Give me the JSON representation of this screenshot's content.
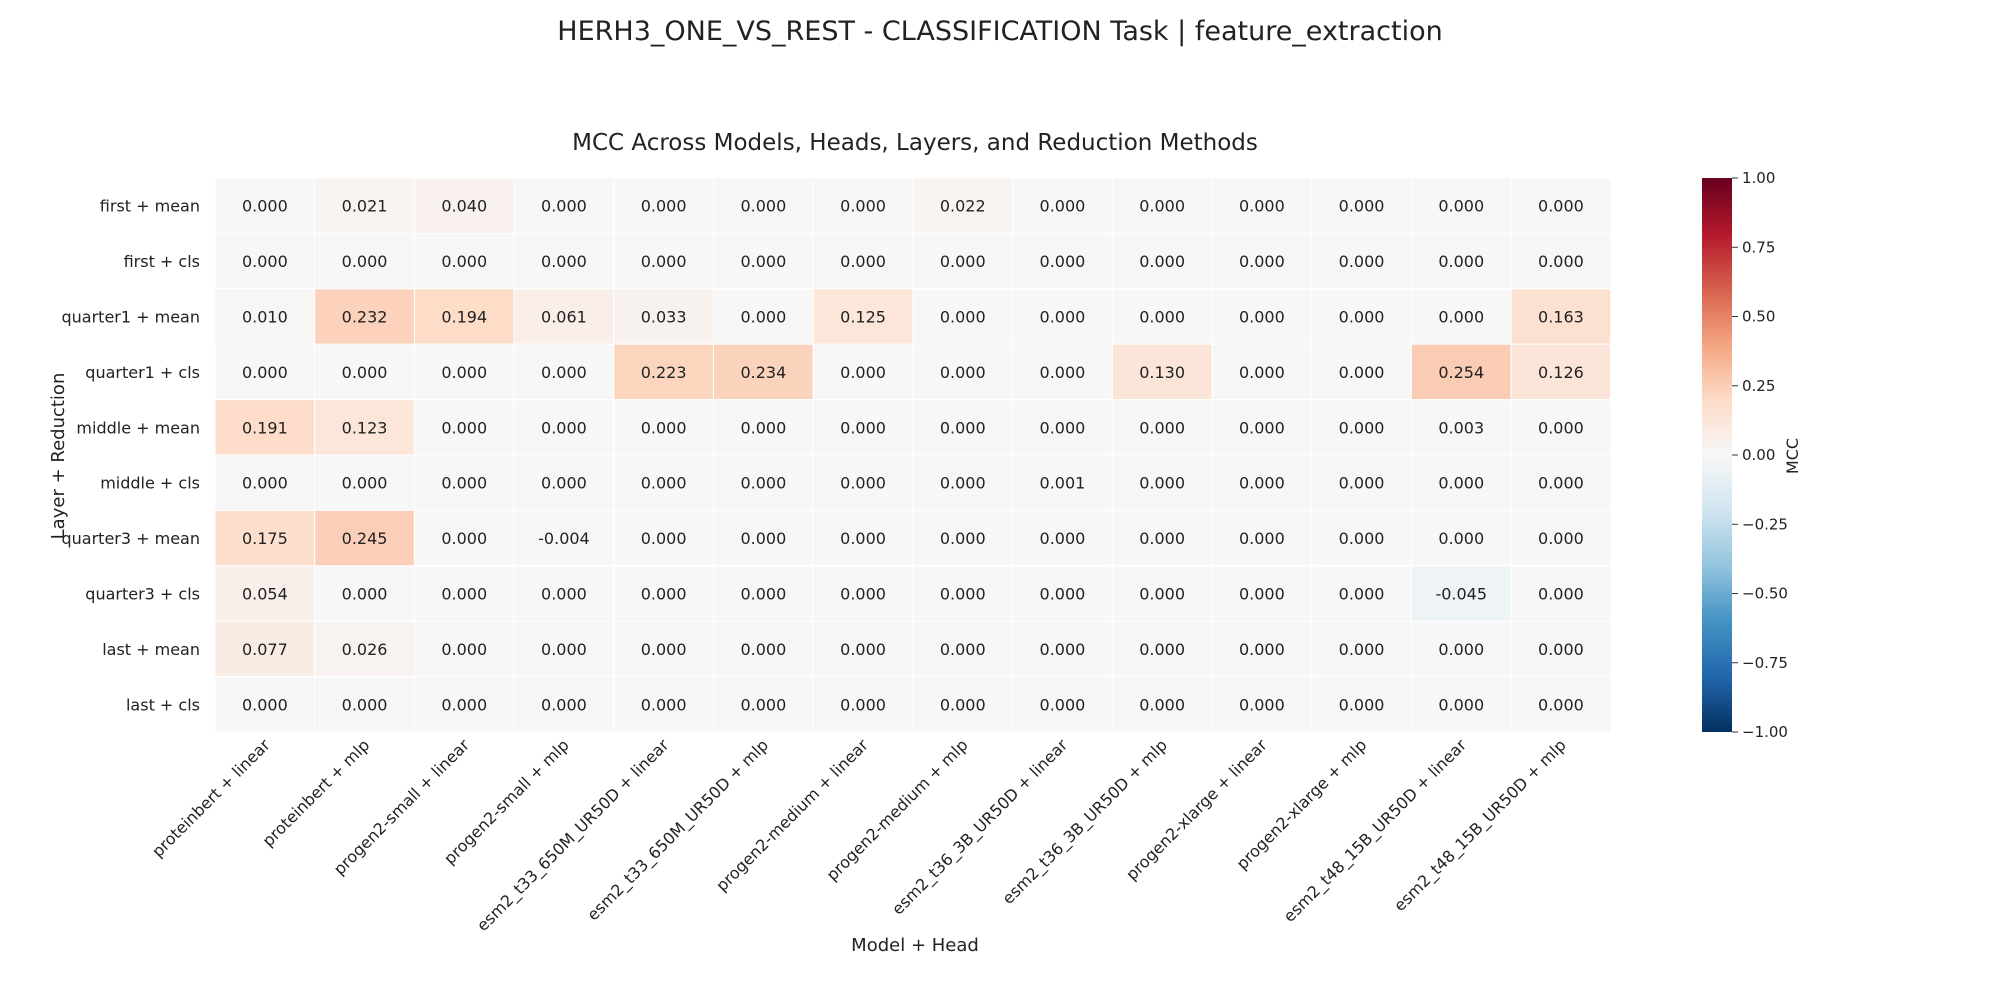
{
  "figure": {
    "suptitle": "HERH3_ONE_VS_REST - CLASSIFICATION Task | feature_extraction"
  },
  "chart_data": {
    "type": "heatmap",
    "title": "MCC Across Models, Heads, Layers, and Reduction Methods",
    "xlabel": "Model + Head",
    "ylabel": "Layer + Reduction",
    "x_categories": [
      "proteinbert + linear",
      "proteinbert + mlp",
      "progen2-small + linear",
      "progen2-small + mlp",
      "esm2_t33_650M_UR50D + linear",
      "esm2_t33_650M_UR50D + mlp",
      "progen2-medium + linear",
      "progen2-medium + mlp",
      "esm2_t36_3B_UR50D + linear",
      "esm2_t36_3B_UR50D + mlp",
      "progen2-xlarge + linear",
      "progen2-xlarge + mlp",
      "esm2_t48_15B_UR50D + linear",
      "esm2_t48_15B_UR50D + mlp"
    ],
    "y_categories": [
      "first + mean",
      "first + cls",
      "quarter1 + mean",
      "quarter1 + cls",
      "middle + mean",
      "middle + cls",
      "quarter3 + mean",
      "quarter3 + cls",
      "last + mean",
      "last + cls"
    ],
    "values": [
      [
        0.0,
        0.021,
        0.04,
        0.0,
        0.0,
        0.0,
        0.0,
        0.022,
        0.0,
        0.0,
        0.0,
        0.0,
        0.0,
        0.0
      ],
      [
        0.0,
        0.0,
        0.0,
        0.0,
        0.0,
        0.0,
        0.0,
        0.0,
        0.0,
        0.0,
        0.0,
        0.0,
        0.0,
        0.0
      ],
      [
        0.01,
        0.232,
        0.194,
        0.061,
        0.033,
        0.0,
        0.125,
        0.0,
        0.0,
        0.0,
        0.0,
        0.0,
        0.0,
        0.163
      ],
      [
        0.0,
        0.0,
        0.0,
        0.0,
        0.223,
        0.234,
        0.0,
        0.0,
        0.0,
        0.13,
        0.0,
        0.0,
        0.254,
        0.126
      ],
      [
        0.191,
        0.123,
        0.0,
        0.0,
        0.0,
        0.0,
        0.0,
        0.0,
        0.0,
        0.0,
        0.0,
        0.0,
        0.003,
        0.0
      ],
      [
        0.0,
        0.0,
        0.0,
        0.0,
        0.0,
        0.0,
        0.0,
        0.0,
        0.001,
        0.0,
        0.0,
        0.0,
        0.0,
        0.0
      ],
      [
        0.175,
        0.245,
        0.0,
        -0.004,
        0.0,
        0.0,
        0.0,
        0.0,
        0.0,
        0.0,
        0.0,
        0.0,
        0.0,
        0.0
      ],
      [
        0.054,
        0.0,
        0.0,
        0.0,
        0.0,
        0.0,
        0.0,
        0.0,
        0.0,
        0.0,
        0.0,
        0.0,
        -0.045,
        0.0
      ],
      [
        0.077,
        0.026,
        0.0,
        0.0,
        0.0,
        0.0,
        0.0,
        0.0,
        0.0,
        0.0,
        0.0,
        0.0,
        0.0,
        0.0
      ],
      [
        0.0,
        0.0,
        0.0,
        0.0,
        0.0,
        0.0,
        0.0,
        0.0,
        0.0,
        0.0,
        0.0,
        0.0,
        0.0,
        0.0
      ]
    ],
    "value_format": "3 decimals",
    "colorbar": {
      "label": "MCC",
      "range": [
        -1.0,
        1.0
      ],
      "ticks": [
        1.0,
        0.75,
        0.5,
        0.25,
        0.0,
        -0.25,
        -0.5,
        -0.75,
        -1.0
      ],
      "tick_labels": [
        "1.00",
        "0.75",
        "0.50",
        "0.25",
        "0.00",
        "−0.25",
        "−0.50",
        "−0.75",
        "−1.00"
      ],
      "colormap": "RdBu_r",
      "colormap_stops": [
        "#053061",
        "#2166ac",
        "#4393c3",
        "#92c5de",
        "#d1e5f0",
        "#f7f7f7",
        "#fddbc7",
        "#f4a582",
        "#d6604d",
        "#b2182b",
        "#67001f"
      ]
    },
    "grid": false,
    "cell_separator_color": "#ffffff"
  }
}
